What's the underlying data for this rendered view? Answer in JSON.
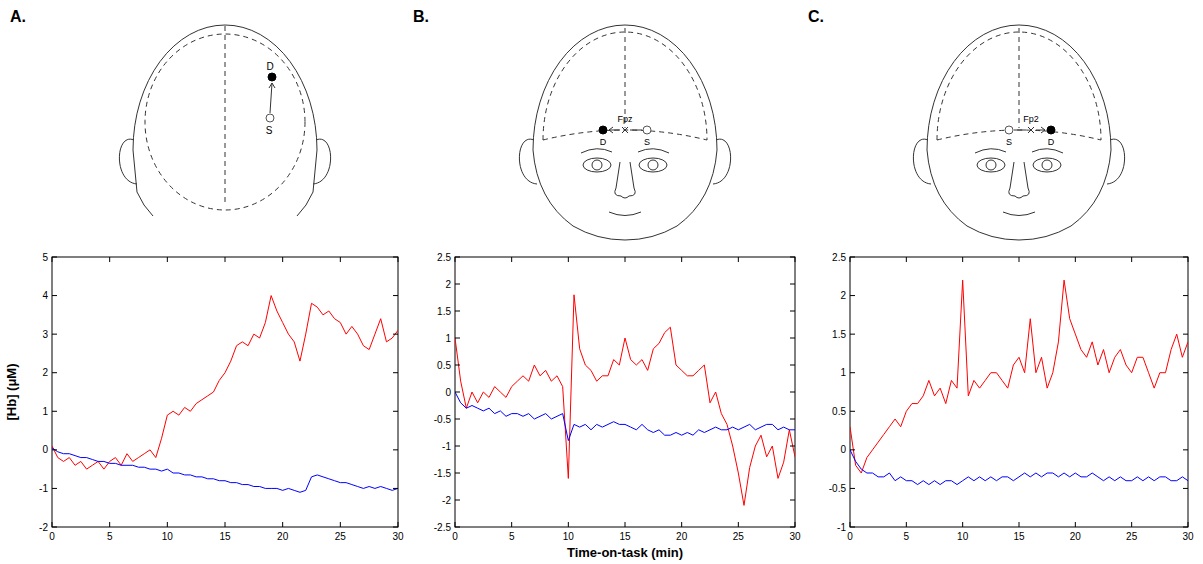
{
  "chart_data": [
    {
      "type": "line",
      "panel_label": "A.",
      "montage": {
        "detector": "D",
        "source": "S"
      },
      "y_label": "[Hb] (μM)",
      "x": [
        0,
        0.5,
        1,
        1.5,
        2,
        2.5,
        3,
        3.5,
        4,
        4.5,
        5,
        5.5,
        6,
        6.5,
        7,
        7.5,
        8,
        8.5,
        9,
        9.5,
        10,
        10.5,
        11,
        11.5,
        12,
        12.5,
        13,
        13.5,
        14,
        14.5,
        15,
        15.5,
        16,
        16.5,
        17,
        17.5,
        18,
        18.5,
        19,
        19.5,
        20,
        20.5,
        21,
        21.5,
        22,
        22.5,
        23,
        23.5,
        24,
        24.5,
        25,
        25.5,
        26,
        26.5,
        27,
        27.5,
        28,
        28.5,
        29,
        29.5,
        30
      ],
      "series": [
        {
          "color": "#ff0000",
          "values": [
            0.1,
            -0.2,
            -0.3,
            -0.2,
            -0.4,
            -0.3,
            -0.5,
            -0.4,
            -0.3,
            -0.5,
            -0.3,
            -0.2,
            -0.4,
            -0.1,
            -0.3,
            -0.2,
            -0.1,
            0.0,
            -0.2,
            0.3,
            0.9,
            1.0,
            0.9,
            1.1,
            1.0,
            1.2,
            1.3,
            1.4,
            1.5,
            1.8,
            2.0,
            2.3,
            2.7,
            2.8,
            2.7,
            3.0,
            2.9,
            3.3,
            4.0,
            3.6,
            3.3,
            3.0,
            2.8,
            2.3,
            3.0,
            3.8,
            3.7,
            3.5,
            3.6,
            3.4,
            3.3,
            3.0,
            3.2,
            3.0,
            2.7,
            2.6,
            3.0,
            3.4,
            2.8,
            2.9,
            3.1
          ]
        },
        {
          "color": "#0000ff",
          "values": [
            0.05,
            -0.05,
            -0.1,
            -0.1,
            -0.15,
            -0.2,
            -0.2,
            -0.25,
            -0.3,
            -0.3,
            -0.35,
            -0.35,
            -0.4,
            -0.4,
            -0.4,
            -0.45,
            -0.45,
            -0.5,
            -0.5,
            -0.55,
            -0.5,
            -0.6,
            -0.6,
            -0.65,
            -0.65,
            -0.7,
            -0.7,
            -0.75,
            -0.75,
            -0.8,
            -0.8,
            -0.85,
            -0.85,
            -0.9,
            -0.9,
            -0.95,
            -0.95,
            -1.0,
            -1.0,
            -1.0,
            -1.05,
            -1.0,
            -1.05,
            -1.1,
            -1.05,
            -0.7,
            -0.65,
            -0.7,
            -0.75,
            -0.8,
            -0.85,
            -0.85,
            -0.9,
            -0.95,
            -1.0,
            -0.95,
            -1.0,
            -0.95,
            -1.0,
            -1.05,
            -1.0
          ]
        }
      ],
      "xlim": [
        0,
        30
      ],
      "xticks": [
        0,
        5,
        10,
        15,
        20,
        25,
        30
      ],
      "ylim": [
        -2,
        5
      ],
      "yticks": [
        -2,
        -1,
        0,
        1,
        2,
        3,
        4,
        5
      ],
      "grid": false
    },
    {
      "type": "line",
      "panel_label": "B.",
      "montage": {
        "detector": "D",
        "source": "S",
        "site": "Fpz"
      },
      "x_label": "Time-on-task (min)",
      "x": [
        0,
        0.5,
        1,
        1.5,
        2,
        2.5,
        3,
        3.5,
        4,
        4.5,
        5,
        5.5,
        6,
        6.5,
        7,
        7.5,
        8,
        8.5,
        9,
        9.5,
        10,
        10.5,
        11,
        11.5,
        12,
        12.5,
        13,
        13.5,
        14,
        14.5,
        15,
        15.5,
        16,
        16.5,
        17,
        17.5,
        18,
        18.5,
        19,
        19.5,
        20,
        20.5,
        21,
        21.5,
        22,
        22.5,
        23,
        23.5,
        24,
        24.5,
        25,
        25.5,
        26,
        26.5,
        27,
        27.5,
        28,
        28.5,
        29,
        29.5,
        30
      ],
      "series": [
        {
          "color": "#ff0000",
          "values": [
            1.0,
            0.2,
            -0.3,
            0.0,
            -0.2,
            0.0,
            -0.1,
            0.1,
            0.0,
            -0.1,
            0.1,
            0.2,
            0.3,
            0.2,
            0.5,
            0.3,
            0.4,
            0.2,
            0.3,
            0.1,
            -1.6,
            1.8,
            0.8,
            0.5,
            0.4,
            0.2,
            0.3,
            0.3,
            0.6,
            0.5,
            1.0,
            0.6,
            0.5,
            0.6,
            0.4,
            0.8,
            0.9,
            1.1,
            1.2,
            0.5,
            0.4,
            0.3,
            0.3,
            0.4,
            0.5,
            -0.2,
            0.0,
            -0.4,
            -0.6,
            -1.0,
            -1.5,
            -2.1,
            -1.4,
            -1.0,
            -0.8,
            -1.2,
            -1.0,
            -1.6,
            -1.3,
            -0.7,
            -1.2
          ]
        },
        {
          "color": "#0000ff",
          "values": [
            0.0,
            -0.2,
            -0.3,
            -0.25,
            -0.3,
            -0.35,
            -0.3,
            -0.4,
            -0.35,
            -0.45,
            -0.4,
            -0.4,
            -0.45,
            -0.4,
            -0.5,
            -0.45,
            -0.4,
            -0.5,
            -0.45,
            -0.4,
            -0.9,
            -0.6,
            -0.65,
            -0.6,
            -0.7,
            -0.6,
            -0.65,
            -0.6,
            -0.55,
            -0.6,
            -0.6,
            -0.65,
            -0.7,
            -0.6,
            -0.7,
            -0.75,
            -0.7,
            -0.8,
            -0.8,
            -0.75,
            -0.8,
            -0.75,
            -0.8,
            -0.7,
            -0.75,
            -0.7,
            -0.65,
            -0.7,
            -0.7,
            -0.65,
            -0.7,
            -0.65,
            -0.6,
            -0.7,
            -0.65,
            -0.6,
            -0.6,
            -0.7,
            -0.65,
            -0.7,
            -0.7
          ]
        }
      ],
      "xlim": [
        0,
        30
      ],
      "xticks": [
        0,
        5,
        10,
        15,
        20,
        25,
        30
      ],
      "ylim": [
        -2.5,
        2.5
      ],
      "yticks": [
        -2.5,
        -2,
        -1.5,
        -1,
        -0.5,
        0,
        0.5,
        1,
        1.5,
        2,
        2.5
      ],
      "grid": false
    },
    {
      "type": "line",
      "panel_label": "C.",
      "montage": {
        "detector": "D",
        "source": "S",
        "site": "Fp2"
      },
      "x": [
        0,
        0.5,
        1,
        1.5,
        2,
        2.5,
        3,
        3.5,
        4,
        4.5,
        5,
        5.5,
        6,
        6.5,
        7,
        7.5,
        8,
        8.5,
        9,
        9.5,
        10,
        10.5,
        11,
        11.5,
        12,
        12.5,
        13,
        13.5,
        14,
        14.5,
        15,
        15.5,
        16,
        16.5,
        17,
        17.5,
        18,
        18.5,
        19,
        19.5,
        20,
        20.5,
        21,
        21.5,
        22,
        22.5,
        23,
        23.5,
        24,
        24.5,
        25,
        25.5,
        26,
        26.5,
        27,
        27.5,
        28,
        28.5,
        29,
        29.5,
        30
      ],
      "series": [
        {
          "color": "#ff0000",
          "values": [
            0.3,
            -0.2,
            -0.3,
            -0.1,
            0.0,
            0.1,
            0.2,
            0.3,
            0.4,
            0.3,
            0.5,
            0.6,
            0.6,
            0.7,
            0.9,
            0.7,
            0.8,
            0.6,
            0.9,
            0.8,
            2.2,
            0.7,
            0.9,
            0.8,
            0.9,
            1.0,
            1.0,
            0.9,
            0.8,
            1.1,
            1.2,
            1.0,
            1.7,
            1.0,
            1.2,
            0.8,
            1.0,
            1.4,
            2.2,
            1.7,
            1.5,
            1.3,
            1.2,
            1.4,
            1.1,
            1.3,
            1.0,
            1.2,
            1.3,
            1.1,
            1.0,
            1.2,
            1.2,
            1.0,
            0.8,
            1.0,
            1.0,
            1.3,
            1.5,
            1.2,
            1.4
          ]
        },
        {
          "color": "#0000ff",
          "values": [
            0.0,
            -0.15,
            -0.25,
            -0.3,
            -0.3,
            -0.35,
            -0.35,
            -0.3,
            -0.4,
            -0.35,
            -0.4,
            -0.4,
            -0.45,
            -0.4,
            -0.45,
            -0.4,
            -0.45,
            -0.4,
            -0.4,
            -0.45,
            -0.4,
            -0.35,
            -0.4,
            -0.35,
            -0.4,
            -0.35,
            -0.4,
            -0.35,
            -0.35,
            -0.4,
            -0.35,
            -0.3,
            -0.35,
            -0.3,
            -0.35,
            -0.3,
            -0.3,
            -0.35,
            -0.3,
            -0.35,
            -0.3,
            -0.35,
            -0.35,
            -0.3,
            -0.35,
            -0.4,
            -0.35,
            -0.4,
            -0.35,
            -0.4,
            -0.4,
            -0.35,
            -0.4,
            -0.35,
            -0.4,
            -0.35,
            -0.35,
            -0.4,
            -0.4,
            -0.35,
            -0.4
          ]
        }
      ],
      "xlim": [
        0,
        30
      ],
      "xticks": [
        0,
        5,
        10,
        15,
        20,
        25,
        30
      ],
      "ylim": [
        -1,
        2.5
      ],
      "yticks": [
        -1,
        -0.5,
        0,
        0.5,
        1,
        1.5,
        2,
        2.5
      ],
      "grid": false
    }
  ]
}
